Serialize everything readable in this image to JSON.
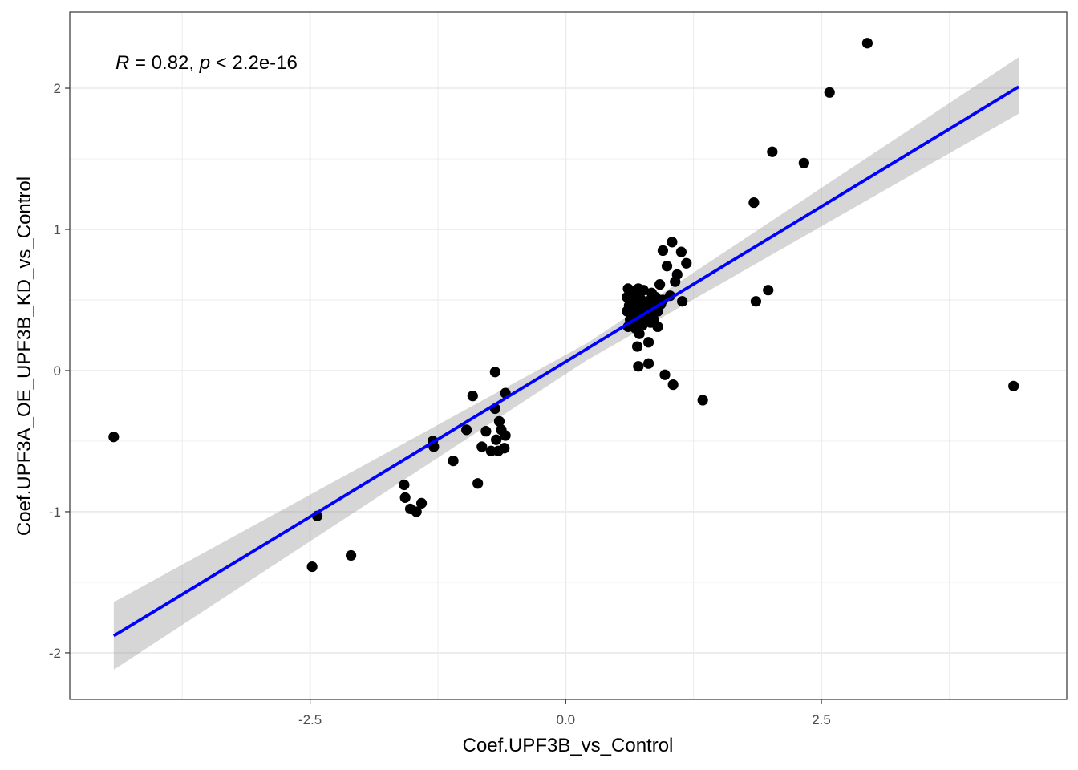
{
  "chart_data": {
    "type": "scatter",
    "xlabel": "Coef.UPF3B_vs_Control",
    "ylabel": "Coef.UPF3A_OE_UPF3B_KD_vs_Control",
    "annotation": {
      "r_symbol": "R",
      "r_text": " = 0.82, ",
      "p_symbol": "p",
      "p_text": " < 2.2e-16"
    },
    "xlim": [
      -4.85,
      4.9
    ],
    "ylim": [
      -2.33,
      2.54
    ],
    "x_ticks": [
      {
        "value": -2.5,
        "label": "-2.5"
      },
      {
        "value": 0.0,
        "label": "0.0"
      },
      {
        "value": 2.5,
        "label": "2.5"
      }
    ],
    "x_minor": [
      -3.75,
      -1.25,
      1.25,
      3.75
    ],
    "y_ticks": [
      {
        "value": -2,
        "label": "-2"
      },
      {
        "value": -1,
        "label": "-1"
      },
      {
        "value": 0,
        "label": "0"
      },
      {
        "value": 1,
        "label": "1"
      },
      {
        "value": 2,
        "label": "2"
      }
    ],
    "y_minor": [
      -1.5,
      -0.5,
      0.5,
      1.5
    ],
    "grid": true,
    "colors": {
      "points": "#000000",
      "line": "#0000ff",
      "band": "#999999",
      "grid": "#ebebeb",
      "panel_border": "#333333"
    },
    "fit": {
      "x": [
        -4.42,
        4.43
      ],
      "y": [
        -1.88,
        2.01
      ],
      "band_x": [
        -4.42,
        0.2,
        4.43
      ],
      "band_lower": [
        -2.12,
        0.07,
        1.82
      ],
      "band_upper": [
        -1.64,
        0.19,
        2.22
      ]
    },
    "points": [
      {
        "x": 2.95,
        "y": 2.32
      },
      {
        "x": 2.58,
        "y": 1.97
      },
      {
        "x": 2.02,
        "y": 1.55
      },
      {
        "x": 2.33,
        "y": 1.47
      },
      {
        "x": 1.84,
        "y": 1.19
      },
      {
        "x": 1.86,
        "y": 0.49
      },
      {
        "x": 1.98,
        "y": 0.57
      },
      {
        "x": 4.38,
        "y": -0.11
      },
      {
        "x": 1.34,
        "y": -0.21
      },
      {
        "x": -4.42,
        "y": -0.47
      },
      {
        "x": 1.04,
        "y": 0.91
      },
      {
        "x": 0.95,
        "y": 0.85
      },
      {
        "x": 1.13,
        "y": 0.84
      },
      {
        "x": 1.18,
        "y": 0.76
      },
      {
        "x": 0.99,
        "y": 0.74
      },
      {
        "x": 1.09,
        "y": 0.68
      },
      {
        "x": 1.07,
        "y": 0.63
      },
      {
        "x": 0.92,
        "y": 0.61
      },
      {
        "x": 1.14,
        "y": 0.49
      },
      {
        "x": 0.61,
        "y": 0.58
      },
      {
        "x": 0.65,
        "y": 0.56
      },
      {
        "x": 0.71,
        "y": 0.58
      },
      {
        "x": 0.76,
        "y": 0.57
      },
      {
        "x": 0.84,
        "y": 0.55
      },
      {
        "x": 0.6,
        "y": 0.52
      },
      {
        "x": 0.66,
        "y": 0.5
      },
      {
        "x": 0.73,
        "y": 0.51
      },
      {
        "x": 0.8,
        "y": 0.49
      },
      {
        "x": 0.88,
        "y": 0.52
      },
      {
        "x": 0.95,
        "y": 0.5
      },
      {
        "x": 1.02,
        "y": 0.53
      },
      {
        "x": 0.62,
        "y": 0.46
      },
      {
        "x": 0.69,
        "y": 0.45
      },
      {
        "x": 0.77,
        "y": 0.44
      },
      {
        "x": 0.85,
        "y": 0.46
      },
      {
        "x": 0.93,
        "y": 0.47
      },
      {
        "x": 0.6,
        "y": 0.42
      },
      {
        "x": 0.67,
        "y": 0.4
      },
      {
        "x": 0.74,
        "y": 0.41
      },
      {
        "x": 0.82,
        "y": 0.39
      },
      {
        "x": 0.9,
        "y": 0.42
      },
      {
        "x": 0.63,
        "y": 0.36
      },
      {
        "x": 0.71,
        "y": 0.35
      },
      {
        "x": 0.79,
        "y": 0.37
      },
      {
        "x": 0.86,
        "y": 0.36
      },
      {
        "x": 0.61,
        "y": 0.31
      },
      {
        "x": 0.68,
        "y": 0.3
      },
      {
        "x": 0.75,
        "y": 0.32
      },
      {
        "x": 0.83,
        "y": 0.34
      },
      {
        "x": 0.9,
        "y": 0.31
      },
      {
        "x": 0.72,
        "y": 0.26
      },
      {
        "x": 0.81,
        "y": 0.2
      },
      {
        "x": 0.7,
        "y": 0.17
      },
      {
        "x": 0.81,
        "y": 0.05
      },
      {
        "x": 0.71,
        "y": 0.03
      },
      {
        "x": 0.97,
        "y": -0.03
      },
      {
        "x": 1.05,
        "y": -0.1
      },
      {
        "x": 0.78,
        "y": 0.48
      },
      {
        "x": 0.7,
        "y": 0.53
      },
      {
        "x": -0.69,
        "y": -0.01
      },
      {
        "x": -0.59,
        "y": -0.16
      },
      {
        "x": -0.91,
        "y": -0.18
      },
      {
        "x": -0.69,
        "y": -0.27
      },
      {
        "x": -0.65,
        "y": -0.36
      },
      {
        "x": -0.97,
        "y": -0.42
      },
      {
        "x": -0.78,
        "y": -0.43
      },
      {
        "x": -0.63,
        "y": -0.42
      },
      {
        "x": -0.59,
        "y": -0.46
      },
      {
        "x": -0.68,
        "y": -0.49
      },
      {
        "x": -0.82,
        "y": -0.54
      },
      {
        "x": -0.73,
        "y": -0.57
      },
      {
        "x": -0.66,
        "y": -0.57
      },
      {
        "x": -0.6,
        "y": -0.55
      },
      {
        "x": -1.1,
        "y": -0.64
      },
      {
        "x": -1.3,
        "y": -0.5
      },
      {
        "x": -1.29,
        "y": -0.54
      },
      {
        "x": -0.86,
        "y": -0.8
      },
      {
        "x": -1.58,
        "y": -0.81
      },
      {
        "x": -1.57,
        "y": -0.9
      },
      {
        "x": -1.52,
        "y": -0.98
      },
      {
        "x": -1.41,
        "y": -0.94
      },
      {
        "x": -1.46,
        "y": -1.0
      },
      {
        "x": -2.43,
        "y": -1.03
      },
      {
        "x": -2.1,
        "y": -1.31
      },
      {
        "x": -2.48,
        "y": -1.39
      }
    ]
  }
}
